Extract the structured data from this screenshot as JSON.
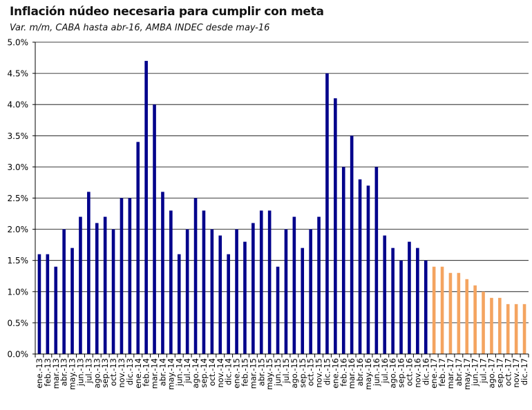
{
  "chart_data": {
    "type": "bar",
    "title": "Inflación núdeo necesaria para cumplir con meta",
    "subtitle": "Var. m/m, CABA hasta abr-16, AMBA INDEC desde may-16",
    "ylim": [
      0,
      5.0
    ],
    "yticks": [
      "0.0%",
      "0.5%",
      "1.0%",
      "1.5%",
      "2.0%",
      "2.5%",
      "3.0%",
      "3.5%",
      "4.0%",
      "4.5%",
      "5.0%"
    ],
    "grid": true,
    "categories": [
      "ene.-13",
      "feb.-13",
      "mar.-13",
      "abr.-13",
      "may.-13",
      "jun.-13",
      "jul.-13",
      "ago.-13",
      "sep.-13",
      "oct.-13",
      "nov.-13",
      "dic.-13",
      "ene.-14",
      "feb.-14",
      "mar.-14",
      "abr.-14",
      "may.-14",
      "jun.-14",
      "jul.-14",
      "ago.-14",
      "sep.-14",
      "oct.-14",
      "nov.-14",
      "dic.-14",
      "ene.-15",
      "feb.-15",
      "mar.-15",
      "abr.-15",
      "may.-15",
      "jun.-15",
      "jul.-15",
      "ago.-15",
      "sep.-15",
      "oct.-15",
      "nov.-15",
      "dic.-15",
      "ene.-16",
      "feb.-16",
      "mar.-16",
      "abr.-16",
      "may.-16",
      "jun.-16",
      "jul.-16",
      "ago.-16",
      "sep.-16",
      "oct.-16",
      "nov.-16",
      "dic.-16",
      "ene.-17",
      "feb.-17",
      "mar.-17",
      "abr.-17",
      "may.-17",
      "jun.-17",
      "jul.-17",
      "ago.-17",
      "sep.-17",
      "oct.-17",
      "nov.-17",
      "dic.-17"
    ],
    "series": [
      {
        "color": "#00008B",
        "values": [
          1.6,
          1.6,
          1.4,
          2.0,
          1.7,
          2.2,
          2.6,
          2.1,
          2.2,
          2.0,
          2.5,
          2.5,
          3.4,
          4.7,
          4.0,
          2.6,
          2.3,
          1.6,
          2.0,
          2.5,
          2.3,
          2.0,
          1.9,
          1.6,
          2.0,
          1.8,
          2.1,
          2.3,
          2.3,
          1.4,
          2.0,
          2.2,
          1.7,
          2.0,
          2.2,
          4.5,
          4.1,
          3.0,
          3.5,
          2.8,
          2.7,
          3.0,
          1.9,
          1.7,
          1.5,
          1.8,
          1.7,
          1.5,
          null,
          null,
          null,
          null,
          null,
          null,
          null,
          null,
          null,
          null,
          null,
          null
        ]
      },
      {
        "color": "#F4A460",
        "values": [
          null,
          null,
          null,
          null,
          null,
          null,
          null,
          null,
          null,
          null,
          null,
          null,
          null,
          null,
          null,
          null,
          null,
          null,
          null,
          null,
          null,
          null,
          null,
          null,
          null,
          null,
          null,
          null,
          null,
          null,
          null,
          null,
          null,
          null,
          null,
          null,
          null,
          null,
          null,
          null,
          null,
          null,
          null,
          null,
          null,
          null,
          null,
          null,
          1.4,
          1.4,
          1.3,
          1.3,
          1.2,
          1.1,
          1.0,
          0.9,
          0.9,
          0.8,
          0.8,
          0.8
        ]
      }
    ]
  }
}
